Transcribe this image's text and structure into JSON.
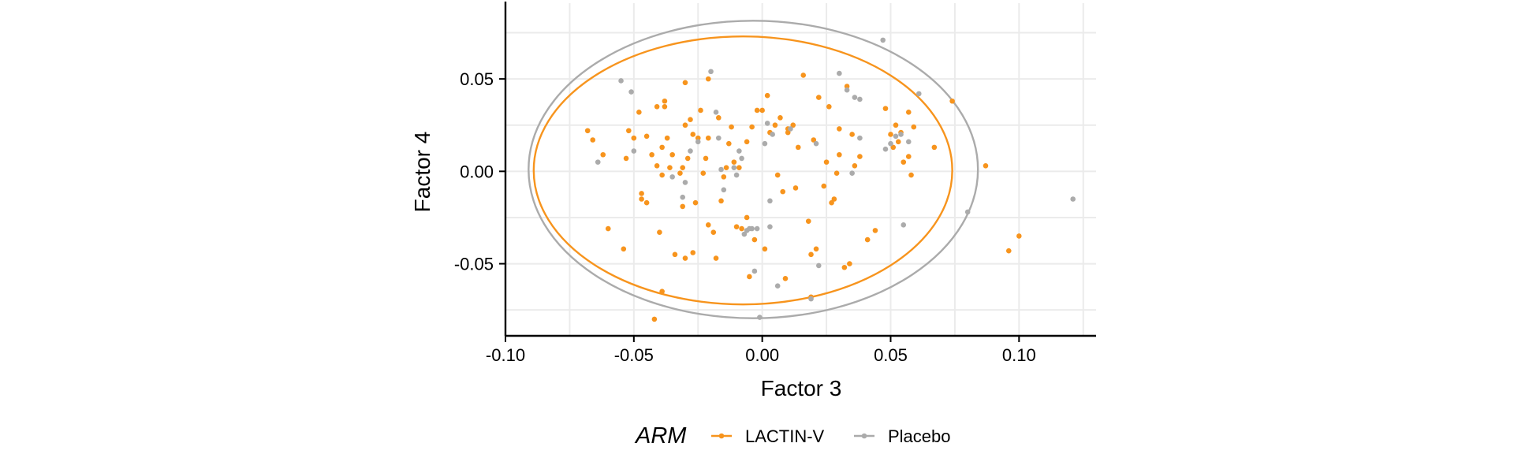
{
  "chart_data": {
    "type": "scatter",
    "xlabel": "Factor 3",
    "ylabel": "Factor 4",
    "xlim": [
      -0.1,
      0.13
    ],
    "ylim": [
      -0.089,
      0.091
    ],
    "x_ticks": [
      -0.1,
      -0.05,
      0.0,
      0.05,
      0.1
    ],
    "x_tick_labels": [
      "-0.10",
      "-0.05",
      "0.00",
      "0.05",
      "0.10"
    ],
    "y_ticks": [
      -0.05,
      0.0,
      0.05
    ],
    "y_tick_labels": [
      "-0.05",
      "0.00",
      "0.05"
    ],
    "grid": true,
    "legend": {
      "title": "ARM",
      "position": "bottom"
    },
    "series": [
      {
        "name": "LACTIN-V",
        "color": "#F7941D",
        "ellipse": {
          "cx": -0.0075,
          "cy": 0.0005,
          "rx": 0.0815,
          "ry": 0.0725
        },
        "points": [
          [
            -0.068,
            0.022
          ],
          [
            -0.066,
            0.017
          ],
          [
            -0.062,
            0.009
          ],
          [
            -0.06,
            -0.031
          ],
          [
            -0.054,
            -0.042
          ],
          [
            -0.053,
            0.007
          ],
          [
            -0.052,
            0.022
          ],
          [
            -0.05,
            0.018
          ],
          [
            -0.048,
            0.032
          ],
          [
            -0.047,
            -0.012
          ],
          [
            -0.047,
            -0.015
          ],
          [
            -0.045,
            0.019
          ],
          [
            -0.045,
            -0.017
          ],
          [
            -0.043,
            0.009
          ],
          [
            -0.042,
            -0.08
          ],
          [
            -0.041,
            0.003
          ],
          [
            -0.041,
            0.035
          ],
          [
            -0.04,
            -0.033
          ],
          [
            -0.039,
            0.013
          ],
          [
            -0.039,
            -0.002
          ],
          [
            -0.039,
            -0.065
          ],
          [
            -0.038,
            0.038
          ],
          [
            -0.038,
            0.035
          ],
          [
            -0.037,
            0.018
          ],
          [
            -0.036,
            0.002
          ],
          [
            -0.035,
            0.009
          ],
          [
            -0.034,
            -0.045
          ],
          [
            -0.032,
            -0.001
          ],
          [
            -0.031,
            0.002
          ],
          [
            -0.031,
            -0.019
          ],
          [
            -0.03,
            0.025
          ],
          [
            -0.03,
            -0.047
          ],
          [
            -0.03,
            0.048
          ],
          [
            -0.029,
            0.007
          ],
          [
            -0.028,
            0.028
          ],
          [
            -0.027,
            -0.044
          ],
          [
            -0.027,
            0.02
          ],
          [
            -0.026,
            -0.017
          ],
          [
            -0.025,
            0.018
          ],
          [
            -0.024,
            0.033
          ],
          [
            -0.023,
            -0.001
          ],
          [
            -0.022,
            0.007
          ],
          [
            -0.021,
            0.05
          ],
          [
            -0.021,
            0.018
          ],
          [
            -0.021,
            -0.029
          ],
          [
            -0.019,
            -0.033
          ],
          [
            -0.018,
            -0.047
          ],
          [
            -0.017,
            0.029
          ],
          [
            -0.016,
            -0.016
          ],
          [
            -0.015,
            -0.003
          ],
          [
            -0.014,
            0.002
          ],
          [
            -0.013,
            0.015
          ],
          [
            -0.012,
            0.024
          ],
          [
            -0.011,
            0.005
          ],
          [
            -0.01,
            -0.03
          ],
          [
            -0.009,
            0.002
          ],
          [
            -0.008,
            -0.031
          ],
          [
            -0.006,
            -0.025
          ],
          [
            -0.006,
            0.016
          ],
          [
            -0.005,
            -0.057
          ],
          [
            -0.004,
            0.024
          ],
          [
            -0.003,
            -0.037
          ],
          [
            -0.002,
            0.033
          ],
          [
            0.0,
            0.033
          ],
          [
            0.001,
            -0.042
          ],
          [
            0.002,
            0.041
          ],
          [
            0.003,
            0.021
          ],
          [
            0.005,
            0.025
          ],
          [
            0.006,
            -0.002
          ],
          [
            0.007,
            0.029
          ],
          [
            0.008,
            -0.011
          ],
          [
            0.009,
            -0.058
          ],
          [
            0.01,
            0.023
          ],
          [
            0.01,
            0.021
          ],
          [
            0.012,
            0.025
          ],
          [
            0.013,
            -0.009
          ],
          [
            0.014,
            0.013
          ],
          [
            0.016,
            0.052
          ],
          [
            0.018,
            -0.027
          ],
          [
            0.019,
            -0.045
          ],
          [
            0.019,
            -0.068
          ],
          [
            0.02,
            0.017
          ],
          [
            0.021,
            -0.042
          ],
          [
            0.022,
            0.04
          ],
          [
            0.024,
            -0.008
          ],
          [
            0.025,
            0.005
          ],
          [
            0.026,
            0.035
          ],
          [
            0.027,
            -0.017
          ],
          [
            0.028,
            -0.015
          ],
          [
            0.029,
            -0.001
          ],
          [
            0.03,
            0.023
          ],
          [
            0.03,
            0.009
          ],
          [
            0.032,
            -0.052
          ],
          [
            0.033,
            0.046
          ],
          [
            0.034,
            -0.05
          ],
          [
            0.035,
            0.02
          ],
          [
            0.036,
            0.003
          ],
          [
            0.038,
            0.008
          ],
          [
            0.041,
            -0.037
          ],
          [
            0.044,
            -0.032
          ],
          [
            0.048,
            0.034
          ],
          [
            0.05,
            0.02
          ],
          [
            0.051,
            0.013
          ],
          [
            0.052,
            0.025
          ],
          [
            0.053,
            0.016
          ],
          [
            0.054,
            0.021
          ],
          [
            0.055,
            0.005
          ],
          [
            0.057,
            0.008
          ],
          [
            0.057,
            0.032
          ],
          [
            0.058,
            -0.002
          ],
          [
            0.059,
            0.024
          ],
          [
            0.067,
            0.013
          ],
          [
            0.074,
            0.038
          ],
          [
            0.087,
            0.003
          ],
          [
            0.096,
            -0.043
          ],
          [
            0.1,
            -0.035
          ]
        ]
      },
      {
        "name": "Placebo",
        "color": "#ABABAB",
        "ellipse": {
          "cx": -0.0035,
          "cy": 0.001,
          "rx": 0.0875,
          "ry": 0.0805
        },
        "points": [
          [
            -0.064,
            0.005
          ],
          [
            -0.055,
            0.049
          ],
          [
            -0.051,
            0.043
          ],
          [
            -0.05,
            0.011
          ],
          [
            -0.035,
            -0.003
          ],
          [
            -0.031,
            -0.014
          ],
          [
            -0.03,
            -0.006
          ],
          [
            -0.028,
            0.011
          ],
          [
            -0.025,
            0.016
          ],
          [
            -0.02,
            0.054
          ],
          [
            -0.018,
            0.032
          ],
          [
            -0.017,
            0.018
          ],
          [
            -0.016,
            0.001
          ],
          [
            -0.015,
            -0.01
          ],
          [
            -0.011,
            0.002
          ],
          [
            -0.01,
            -0.002
          ],
          [
            -0.009,
            0.011
          ],
          [
            -0.008,
            0.007
          ],
          [
            -0.007,
            -0.034
          ],
          [
            -0.006,
            -0.032
          ],
          [
            -0.005,
            -0.031
          ],
          [
            -0.004,
            -0.031
          ],
          [
            -0.003,
            -0.054
          ],
          [
            -0.002,
            -0.031
          ],
          [
            -0.001,
            -0.079
          ],
          [
            0.001,
            0.015
          ],
          [
            0.002,
            0.026
          ],
          [
            0.003,
            -0.016
          ],
          [
            0.003,
            -0.03
          ],
          [
            0.004,
            0.02
          ],
          [
            0.006,
            -0.062
          ],
          [
            0.011,
            0.023
          ],
          [
            0.019,
            -0.069
          ],
          [
            0.021,
            0.015
          ],
          [
            0.022,
            -0.051
          ],
          [
            0.03,
            0.053
          ],
          [
            0.033,
            0.044
          ],
          [
            0.035,
            -0.001
          ],
          [
            0.036,
            0.04
          ],
          [
            0.038,
            0.039
          ],
          [
            0.038,
            0.018
          ],
          [
            0.047,
            0.071
          ],
          [
            0.048,
            0.012
          ],
          [
            0.05,
            0.015
          ],
          [
            0.052,
            0.019
          ],
          [
            0.054,
            0.02
          ],
          [
            0.055,
            -0.029
          ],
          [
            0.057,
            0.016
          ],
          [
            0.061,
            0.042
          ],
          [
            0.08,
            -0.022
          ],
          [
            0.121,
            -0.015
          ]
        ]
      }
    ]
  }
}
